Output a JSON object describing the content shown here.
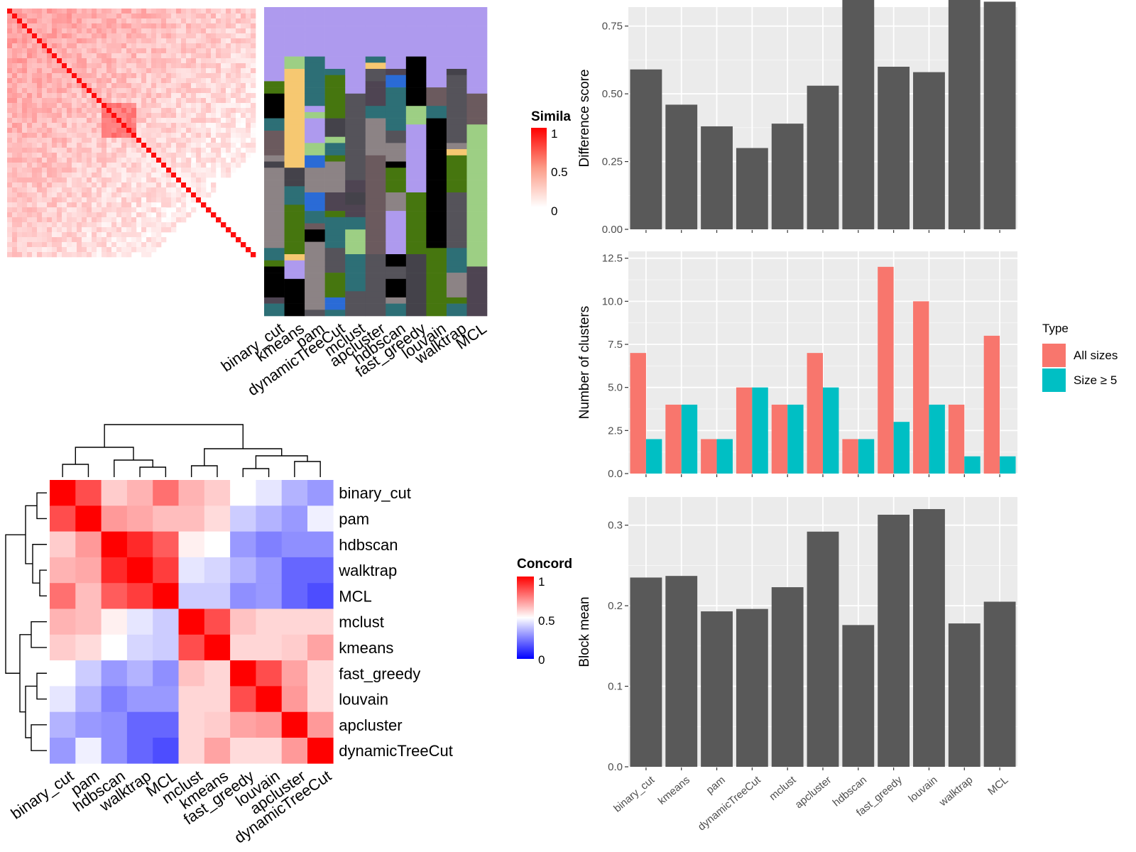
{
  "methods": [
    "binary_cut",
    "kmeans",
    "pam",
    "dynamicTreeCut",
    "mclust",
    "apcluster",
    "hdbscan",
    "fast_greedy",
    "louvain",
    "walktrap",
    "MCL"
  ],
  "similarity_heatmap": {
    "legend_title": "Simila",
    "legend_ticks": [
      "1",
      "0.5",
      "0"
    ]
  },
  "cluster_grid": {
    "labels": [
      "binary_cut",
      "kmeans",
      "pam",
      "dynamicTreeCut",
      "mclust",
      "apcluster",
      "hdbscan",
      "fast_greedy",
      "louvain",
      "walktrap",
      "MCL"
    ]
  },
  "concordance": {
    "legend_title": "Concord",
    "legend_ticks": [
      "1",
      "0.5",
      "0"
    ],
    "colors": {
      "high": "#ff0000",
      "mid": "#ffffff",
      "low": "#0000ff"
    },
    "row_order": [
      "binary_cut",
      "pam",
      "hdbscan",
      "walktrap",
      "MCL",
      "mclust",
      "kmeans",
      "fast_greedy",
      "louvain",
      "apcluster",
      "dynamicTreeCut"
    ],
    "matrix": [
      [
        1.0,
        0.85,
        0.6,
        0.65,
        0.78,
        0.65,
        0.6,
        0.5,
        0.45,
        0.35,
        0.3
      ],
      [
        0.85,
        1.0,
        0.7,
        0.67,
        0.63,
        0.63,
        0.57,
        0.4,
        0.35,
        0.3,
        0.47
      ],
      [
        0.6,
        0.7,
        1.0,
        0.92,
        0.82,
        0.53,
        0.5,
        0.3,
        0.25,
        0.28,
        0.28
      ],
      [
        0.65,
        0.67,
        0.92,
        1.0,
        0.88,
        0.45,
        0.42,
        0.35,
        0.3,
        0.2,
        0.2
      ],
      [
        0.78,
        0.63,
        0.82,
        0.88,
        1.0,
        0.4,
        0.4,
        0.28,
        0.3,
        0.2,
        0.15
      ],
      [
        0.65,
        0.63,
        0.53,
        0.45,
        0.4,
        1.0,
        0.85,
        0.62,
        0.58,
        0.58,
        0.58
      ],
      [
        0.6,
        0.57,
        0.5,
        0.42,
        0.4,
        0.85,
        1.0,
        0.58,
        0.58,
        0.6,
        0.68
      ],
      [
        0.5,
        0.4,
        0.3,
        0.35,
        0.28,
        0.62,
        0.58,
        1.0,
        0.85,
        0.68,
        0.57
      ],
      [
        0.45,
        0.35,
        0.25,
        0.3,
        0.3,
        0.58,
        0.58,
        0.85,
        1.0,
        0.7,
        0.57
      ],
      [
        0.35,
        0.3,
        0.28,
        0.2,
        0.2,
        0.58,
        0.6,
        0.68,
        0.7,
        1.0,
        0.7
      ],
      [
        0.3,
        0.47,
        0.28,
        0.2,
        0.15,
        0.58,
        0.68,
        0.57,
        0.57,
        0.7,
        1.0
      ]
    ]
  },
  "chart_data": [
    {
      "type": "bar",
      "categories": [
        "binary_cut",
        "kmeans",
        "pam",
        "dynamicTreeCut",
        "mclust",
        "apcluster",
        "hdbscan",
        "fast_greedy",
        "louvain",
        "walktrap",
        "MCL"
      ],
      "values": [
        0.59,
        0.46,
        0.38,
        0.3,
        0.39,
        0.53,
        0.87,
        0.6,
        0.58,
        0.88,
        0.84
      ],
      "xlabel": "",
      "ylabel": "Difference score",
      "ylim": [
        0,
        0.82
      ],
      "yticks": [
        0.0,
        0.25,
        0.5,
        0.75
      ],
      "ytick_labels": [
        "0.00",
        "0.25",
        "0.50",
        "0.75"
      ],
      "grid": true,
      "bar_color": "#595959"
    },
    {
      "type": "bar",
      "categories": [
        "binary_cut",
        "kmeans",
        "pam",
        "dynamicTreeCut",
        "mclust",
        "apcluster",
        "hdbscan",
        "fast_greedy",
        "louvain",
        "walktrap",
        "MCL"
      ],
      "series": [
        {
          "name": "All sizes",
          "values": [
            7,
            4,
            2,
            5,
            4,
            7,
            2,
            12,
            10,
            4,
            8
          ],
          "color": "#F8766D"
        },
        {
          "name": "Size ≥ 5",
          "values": [
            2,
            4,
            2,
            5,
            4,
            5,
            2,
            3,
            4,
            1,
            1
          ],
          "color": "#00BFC4"
        }
      ],
      "xlabel": "",
      "ylabel": "Number of clusters",
      "ylim": [
        0,
        12.9
      ],
      "yticks": [
        0,
        2.5,
        5,
        7.5,
        10,
        12.5
      ],
      "ytick_labels": [
        "0.0",
        "2.5",
        "5.0",
        "7.5",
        "10.0",
        "12.5"
      ],
      "legend_title": "Type",
      "legend_position": "right",
      "grid": true
    },
    {
      "type": "bar",
      "categories": [
        "binary_cut",
        "kmeans",
        "pam",
        "dynamicTreeCut",
        "mclust",
        "apcluster",
        "hdbscan",
        "fast_greedy",
        "louvain",
        "walktrap",
        "MCL"
      ],
      "values": [
        0.235,
        0.237,
        0.193,
        0.196,
        0.223,
        0.292,
        0.176,
        0.313,
        0.32,
        0.178,
        0.205
      ],
      "xlabel": "",
      "ylabel": "Block mean",
      "ylim": [
        0,
        0.335
      ],
      "yticks": [
        0.0,
        0.1,
        0.2,
        0.3
      ],
      "ytick_labels": [
        "0.0",
        "0.1",
        "0.2",
        "0.3"
      ],
      "grid": true,
      "bar_color": "#595959"
    }
  ]
}
